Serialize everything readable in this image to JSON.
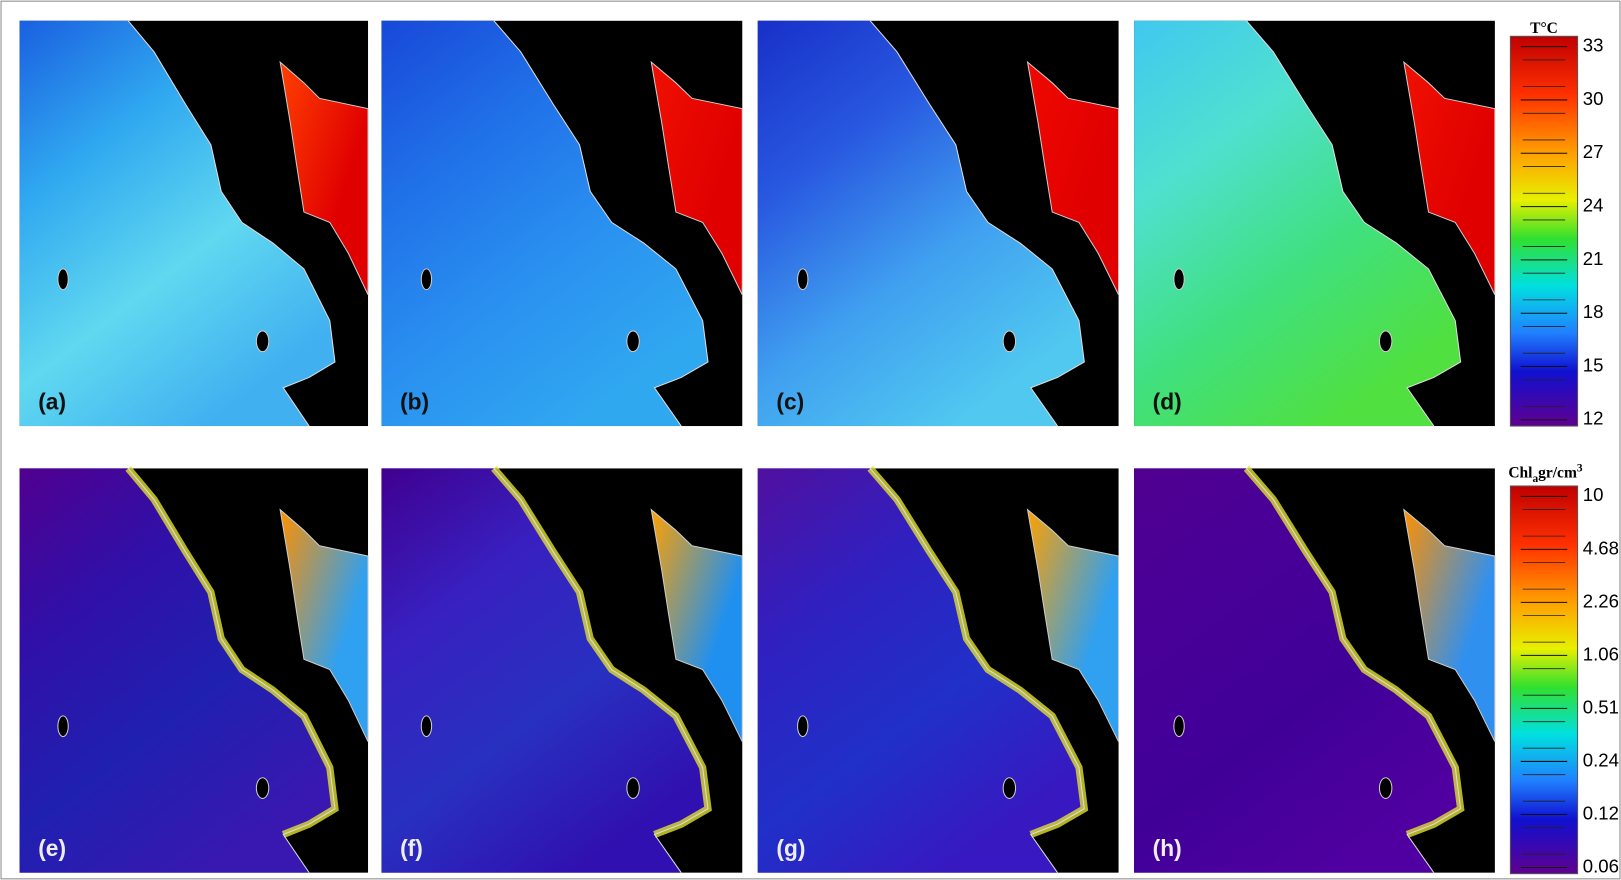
{
  "panels": [
    {
      "label": "(a)"
    },
    {
      "label": "(b)"
    },
    {
      "label": "(c)"
    },
    {
      "label": "(d)"
    },
    {
      "label": "(e)"
    },
    {
      "label": "(f)"
    },
    {
      "label": "(g)"
    },
    {
      "label": "(h)"
    }
  ],
  "colorbars": [
    {
      "title": "T°C",
      "ticks": [
        33,
        30,
        27,
        24,
        21,
        18,
        15,
        12
      ]
    },
    {
      "title": {
        "main": "Chl",
        "subscript": "a",
        "unit": "gr/cm",
        "superscript": "3"
      },
      "ticks": [
        10,
        4.68,
        2.26,
        1.06,
        0.51,
        0.24,
        0.12,
        0.06
      ]
    }
  ]
}
